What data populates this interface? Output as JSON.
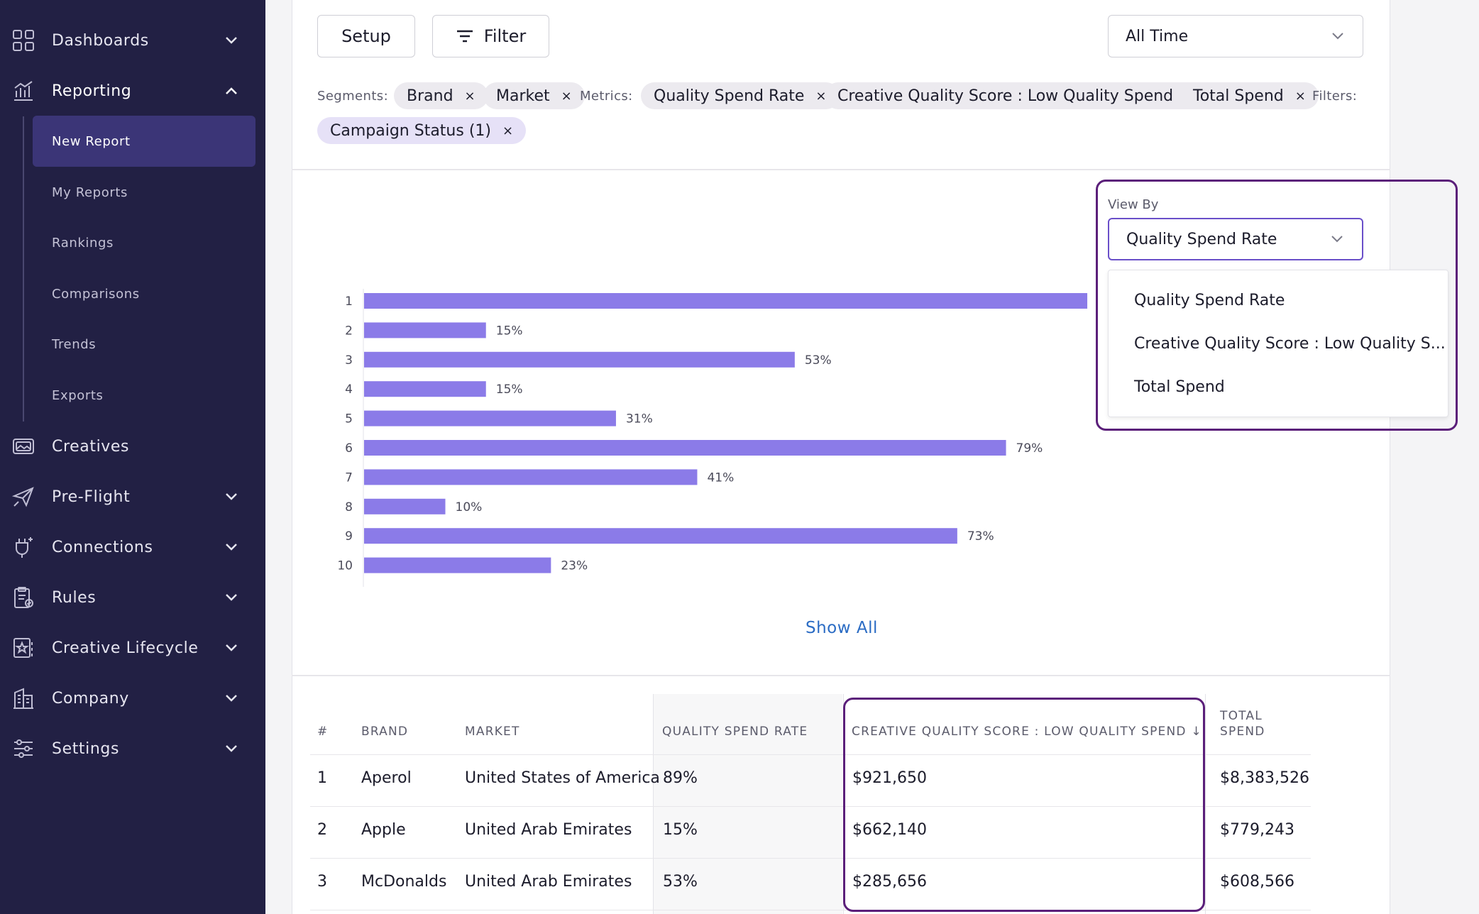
{
  "sidebar": {
    "items": [
      {
        "label": "Dashboards",
        "icon": "dashboard-grid-icon",
        "chevron": "down"
      },
      {
        "label": "Reporting",
        "icon": "reporting-chart-icon",
        "chevron": "up"
      },
      {
        "label": "Creatives",
        "icon": "creatives-image-icon",
        "chevron": ""
      },
      {
        "label": "Pre-Flight",
        "icon": "paper-plane-icon",
        "chevron": "down"
      },
      {
        "label": "Connections",
        "icon": "plug-icon",
        "chevron": "down"
      },
      {
        "label": "Rules",
        "icon": "clipboard-check-icon",
        "chevron": "down"
      },
      {
        "label": "Creative Lifecycle",
        "icon": "lifecycle-star-icon",
        "chevron": "down"
      },
      {
        "label": "Company",
        "icon": "building-icon",
        "chevron": "down"
      },
      {
        "label": "Settings",
        "icon": "sliders-icon",
        "chevron": "down"
      }
    ],
    "reporting_sub": [
      "New Report",
      "My Reports",
      "Rankings",
      "Comparisons",
      "Trends",
      "Exports"
    ],
    "active_sub": "New Report"
  },
  "toolbar": {
    "setup_label": "Setup",
    "filter_label": "Filter",
    "time_select": "All Time"
  },
  "tags": {
    "segments_label": "Segments:",
    "segments": [
      "Brand",
      "Market"
    ],
    "metrics_label": "Metrics:",
    "metrics": [
      "Quality Spend Rate",
      "Creative Quality Score : Low Quality Spend",
      "Total Spend"
    ],
    "filters_label": "Filters:",
    "filters": [
      "Campaign Status (1)"
    ],
    "remove_glyph": "×"
  },
  "view_by": {
    "label": "View By",
    "selected": "Quality Spend Rate",
    "options": [
      "Quality Spend Rate",
      "Creative Quality Score : Low Quality S...",
      "Total Spend"
    ]
  },
  "chart_data": {
    "type": "bar",
    "orientation": "horizontal",
    "categories": [
      "1",
      "2",
      "3",
      "4",
      "5",
      "6",
      "7",
      "8",
      "9",
      "10"
    ],
    "values": [
      89,
      15,
      53,
      15,
      31,
      79,
      41,
      10,
      73,
      23
    ],
    "value_labels": [
      "",
      "15%",
      "53%",
      "15%",
      "31%",
      "79%",
      "41%",
      "10%",
      "73%",
      "23%"
    ],
    "bar_color": "#8b7be8",
    "xlim": [
      0,
      100
    ]
  },
  "show_all_label": "Show All",
  "table": {
    "headers": {
      "num": "#",
      "brand": "BRAND",
      "market": "MARKET",
      "qsr": "QUALITY SPEND RATE",
      "cqs": "CREATIVE QUALITY SCORE : LOW QUALITY SPEND",
      "cqs_sort": "↓",
      "total_line1": "TOTAL",
      "total_line2": "SPEND"
    },
    "rows": [
      {
        "num": "1",
        "brand": "Aperol",
        "market": "United States of America",
        "qsr": "89%",
        "cqs": "$921,650",
        "total": "$8,383,526"
      },
      {
        "num": "2",
        "brand": "Apple",
        "market": "United Arab Emirates",
        "qsr": "15%",
        "cqs": "$662,140",
        "total": "$779,243"
      },
      {
        "num": "3",
        "brand": "McDonalds",
        "market": "United Arab Emirates",
        "qsr": "53%",
        "cqs": "$285,656",
        "total": "$608,566"
      }
    ]
  },
  "colors": {
    "sidebar_bg": "#222044",
    "active_bg": "#3b3577",
    "highlight_border": "#5b1f7a",
    "link": "#2b6cc4"
  }
}
